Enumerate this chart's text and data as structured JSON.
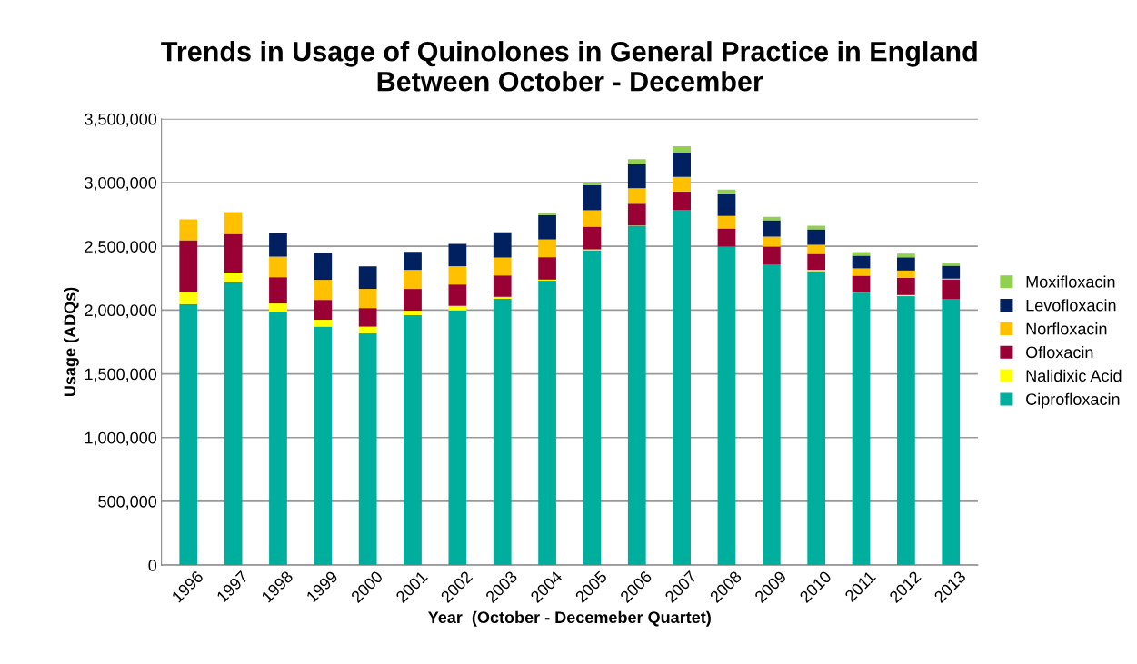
{
  "chart_data": {
    "type": "bar",
    "stacked": true,
    "title": "Trends in Usage of Quinolones in General Practice in England\nBetween October - December",
    "xlabel": "Year  (October - Decemeber Quartet)",
    "ylabel": "Usage (ADQs)",
    "categories": [
      "1996",
      "1997",
      "1998",
      "1999",
      "2000",
      "2001",
      "2002",
      "2003",
      "2004",
      "2005",
      "2006",
      "2007",
      "2008",
      "2009",
      "2010",
      "2011",
      "2012",
      "2013"
    ],
    "series": [
      {
        "name": "Ciprofloxacin",
        "color": "#00ae9d",
        "values": [
          2047000,
          2218000,
          1983000,
          1870000,
          1817000,
          1960000,
          1997000,
          2088000,
          2230000,
          2469000,
          2661000,
          2782000,
          2498000,
          2355000,
          2306000,
          2137000,
          2109000,
          2085000
        ]
      },
      {
        "name": "Nalidixic Acid",
        "color": "#ffff00",
        "values": [
          97000,
          76000,
          69000,
          54000,
          53000,
          35000,
          36000,
          16000,
          9000,
          7000,
          3000,
          0,
          0,
          0,
          9000,
          0,
          9000,
          0
        ]
      },
      {
        "name": "Ofloxacin",
        "color": "#990033",
        "values": [
          403000,
          303000,
          206000,
          156000,
          146000,
          171000,
          168000,
          168000,
          176000,
          178000,
          171000,
          149000,
          142000,
          143000,
          126000,
          133000,
          135000,
          152000
        ]
      },
      {
        "name": "Norfloxacin",
        "color": "#ffc000",
        "values": [
          164000,
          171000,
          161000,
          157000,
          150000,
          149000,
          143000,
          140000,
          139000,
          128000,
          121000,
          114000,
          99000,
          78000,
          71000,
          57000,
          57000,
          9000
        ]
      },
      {
        "name": "Levofloxacin",
        "color": "#002060",
        "values": [
          0,
          0,
          185000,
          211000,
          177000,
          142000,
          175000,
          197000,
          192000,
          199000,
          189000,
          190000,
          171000,
          128000,
          121000,
          100000,
          104000,
          102000
        ]
      },
      {
        "name": "Moxifloxacin",
        "color": "#92d050",
        "values": [
          0,
          0,
          0,
          0,
          0,
          0,
          0,
          5000,
          15000,
          14000,
          38000,
          50000,
          35000,
          28000,
          28000,
          28000,
          29000,
          22000
        ]
      }
    ],
    "ylim": [
      0,
      3500000
    ],
    "yticks": [
      {
        "value": 0,
        "label": "0"
      },
      {
        "value": 500000,
        "label": "500,000"
      },
      {
        "value": 1000000,
        "label": "1,000,000"
      },
      {
        "value": 1500000,
        "label": "1,500,000"
      },
      {
        "value": 2000000,
        "label": "2,000,000"
      },
      {
        "value": 2500000,
        "label": "2,500,000"
      },
      {
        "value": 3000000,
        "label": "3,000,000"
      },
      {
        "value": 3500000,
        "label": "3,500,000"
      }
    ],
    "grid": "y",
    "legend": "right"
  }
}
